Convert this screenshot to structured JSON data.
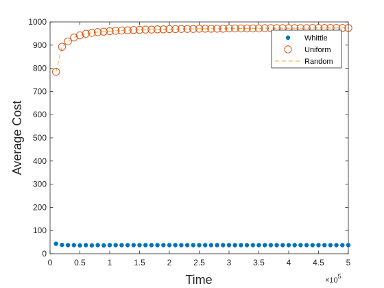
{
  "chart_data": {
    "type": "scatter",
    "xlabel": "Time",
    "ylabel": "Average Cost",
    "x_exponent": {
      "base": "×10",
      "power": "5"
    },
    "xlim": [
      0,
      500000
    ],
    "ylim": [
      0,
      1000
    ],
    "xticks": [
      0,
      50000,
      100000,
      150000,
      200000,
      250000,
      300000,
      350000,
      400000,
      450000,
      500000
    ],
    "xtick_labels": [
      "0",
      "0.5",
      "1",
      "1.5",
      "2",
      "2.5",
      "3",
      "3.5",
      "4",
      "4.5",
      "5"
    ],
    "yticks": [
      0,
      100,
      200,
      300,
      400,
      500,
      600,
      700,
      800,
      900,
      1000
    ],
    "ytick_labels": [
      "0",
      "100",
      "200",
      "300",
      "400",
      "500",
      "600",
      "700",
      "800",
      "900",
      "1000"
    ],
    "grid": false,
    "legend_position": "top-right",
    "x": [
      10000,
      20000,
      30000,
      40000,
      50000,
      60000,
      70000,
      80000,
      90000,
      100000,
      110000,
      120000,
      130000,
      140000,
      150000,
      160000,
      170000,
      180000,
      190000,
      200000,
      210000,
      220000,
      230000,
      240000,
      250000,
      260000,
      270000,
      280000,
      290000,
      300000,
      310000,
      320000,
      330000,
      340000,
      350000,
      360000,
      370000,
      380000,
      390000,
      400000,
      410000,
      420000,
      430000,
      440000,
      450000,
      460000,
      470000,
      480000,
      490000,
      500000
    ],
    "series": [
      {
        "name": "Whittle",
        "marker": "filled-circle",
        "color": "#0072BD",
        "values": [
          43,
          38,
          37,
          37,
          36,
          37,
          36,
          37,
          36,
          37,
          37,
          37,
          37,
          37,
          37,
          37,
          37,
          37,
          37,
          37,
          37,
          37,
          37,
          37,
          37,
          37,
          37,
          37,
          37,
          37,
          37,
          37,
          37,
          37,
          37,
          37,
          37,
          37,
          37,
          37,
          37,
          37,
          37,
          37,
          37,
          37,
          37,
          37,
          37,
          37
        ]
      },
      {
        "name": "Uniform",
        "marker": "open-circle",
        "color": "#D95319",
        "values": [
          785,
          893,
          916,
          933,
          942,
          949,
          953,
          956,
          958,
          960,
          962,
          963,
          964,
          965,
          966,
          967,
          967,
          968,
          968,
          969,
          969,
          970,
          970,
          970,
          971,
          971,
          971,
          971,
          971,
          972,
          972,
          972,
          972,
          972,
          972,
          973,
          973,
          973,
          973,
          973,
          973,
          973,
          973,
          974,
          974,
          974,
          974,
          974,
          974,
          974
        ]
      },
      {
        "name": "Random",
        "marker": "dashed-line",
        "color": "#EDB120",
        "values": [
          785,
          893,
          916,
          933,
          942,
          949,
          953,
          956,
          958,
          960,
          962,
          963,
          964,
          965,
          966,
          967,
          967,
          968,
          968,
          969,
          969,
          970,
          970,
          970,
          971,
          971,
          971,
          971,
          971,
          972,
          972,
          972,
          972,
          972,
          972,
          973,
          973,
          973,
          973,
          973,
          973,
          973,
          973,
          974,
          974,
          974,
          974,
          974,
          974,
          974
        ]
      }
    ]
  }
}
